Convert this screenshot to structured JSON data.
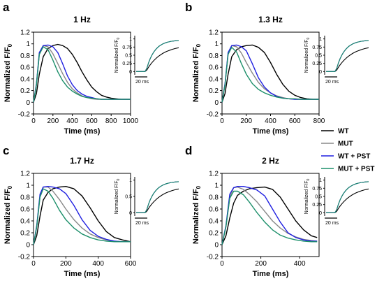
{
  "chart_data": [
    {
      "panel_label": "a",
      "type": "line",
      "title": "1 Hz",
      "xlabel": "Time (ms)",
      "ylabel": "Normalized F/F",
      "ylabel_sub": "0",
      "xlim": [
        0,
        1000
      ],
      "ylim": [
        -0.2,
        1.2
      ],
      "xticks": [
        "0",
        "200",
        "400",
        "600",
        "800",
        "1000"
      ],
      "yticks": [
        "-0.2",
        "0",
        "0.2",
        "0.4",
        "0.6",
        "0.8",
        "1",
        "1.2"
      ],
      "series": [
        {
          "name": "WT",
          "color": "#000000",
          "x": [
            0,
            30,
            60,
            100,
            150,
            200,
            250,
            300,
            350,
            400,
            450,
            500,
            550,
            600,
            650,
            700,
            750,
            800,
            850,
            900,
            950,
            1000
          ],
          "y": [
            0,
            0.15,
            0.48,
            0.78,
            0.92,
            0.97,
            0.99,
            0.97,
            0.92,
            0.82,
            0.68,
            0.52,
            0.38,
            0.26,
            0.18,
            0.12,
            0.09,
            0.07,
            0.06,
            0.05,
            0.05,
            0.05
          ]
        },
        {
          "name": "MUT",
          "color": "#888888",
          "x": [
            0,
            30,
            60,
            100,
            150,
            200,
            250,
            300,
            350,
            400,
            450,
            500,
            550,
            600,
            650,
            700,
            750,
            800,
            850,
            900,
            950,
            1000
          ],
          "y": [
            0,
            0.3,
            0.82,
            0.97,
            0.95,
            0.83,
            0.66,
            0.49,
            0.34,
            0.23,
            0.16,
            0.11,
            0.08,
            0.06,
            0.05,
            0.05,
            0.05,
            0.05,
            0.05,
            0.05,
            0.05,
            0.05
          ]
        },
        {
          "name": "WT + PST",
          "color": "#1f1fe0",
          "x": [
            0,
            30,
            60,
            100,
            150,
            200,
            250,
            300,
            350,
            400,
            450,
            500,
            550,
            600,
            650,
            700,
            750,
            800,
            850,
            900,
            950,
            1000
          ],
          "y": [
            0,
            0.32,
            0.85,
            0.97,
            0.98,
            0.95,
            0.85,
            0.66,
            0.45,
            0.3,
            0.2,
            0.14,
            0.1,
            0.08,
            0.06,
            0.05,
            0.05,
            0.05,
            0.05,
            0.05,
            0.05,
            0.05
          ]
        },
        {
          "name": "MUT + PST",
          "color": "#1c8f6a",
          "x": [
            0,
            30,
            60,
            100,
            150,
            200,
            250,
            300,
            350,
            400,
            450,
            500,
            550,
            600,
            650,
            700,
            750,
            800,
            850,
            900,
            950,
            1000
          ],
          "y": [
            0,
            0.3,
            0.82,
            0.95,
            0.9,
            0.72,
            0.52,
            0.37,
            0.26,
            0.19,
            0.14,
            0.1,
            0.08,
            0.07,
            0.06,
            0.05,
            0.05,
            0.05,
            0.05,
            0.05,
            0.05,
            0.05
          ]
        }
      ],
      "inset": {
        "ylabel": "Normalized F/F",
        "ylabel_sub": "0",
        "yticks": [
          "0",
          "0.25",
          "0.5",
          "0.75",
          "1"
        ],
        "scale_bar_label": "20 ms"
      }
    },
    {
      "panel_label": "b",
      "type": "line",
      "title": "1.3 Hz",
      "xlabel": "Time (ms)",
      "ylabel": "Normalized F/F",
      "ylabel_sub": "0",
      "xlim": [
        0,
        800
      ],
      "ylim": [
        -0.2,
        1.2
      ],
      "xticks": [
        "0",
        "200",
        "400",
        "600",
        "800"
      ],
      "yticks": [
        "-0.2",
        "0",
        "0.2",
        "0.4",
        "0.6",
        "0.8",
        "1",
        "1.2"
      ],
      "series": [
        {
          "name": "WT",
          "color": "#000000",
          "x": [
            0,
            25,
            50,
            80,
            120,
            160,
            200,
            250,
            300,
            350,
            400,
            450,
            500,
            550,
            600,
            650,
            700,
            750,
            800
          ],
          "y": [
            0,
            0.15,
            0.48,
            0.78,
            0.9,
            0.95,
            0.97,
            0.98,
            0.94,
            0.85,
            0.68,
            0.48,
            0.31,
            0.19,
            0.12,
            0.08,
            0.06,
            0.05,
            0.05
          ]
        },
        {
          "name": "MUT",
          "color": "#888888",
          "x": [
            0,
            25,
            50,
            80,
            120,
            160,
            200,
            250,
            300,
            350,
            400,
            450,
            500,
            550,
            600,
            650,
            700,
            750,
            800
          ],
          "y": [
            0,
            0.3,
            0.82,
            0.97,
            0.95,
            0.84,
            0.68,
            0.5,
            0.34,
            0.23,
            0.16,
            0.11,
            0.08,
            0.06,
            0.05,
            0.05,
            0.05,
            0.05,
            0.05
          ]
        },
        {
          "name": "WT + PST",
          "color": "#1f1fe0",
          "x": [
            0,
            25,
            50,
            80,
            120,
            160,
            200,
            250,
            300,
            350,
            400,
            450,
            500,
            550,
            600,
            650,
            700,
            750,
            800
          ],
          "y": [
            0,
            0.32,
            0.85,
            0.97,
            0.98,
            0.95,
            0.88,
            0.66,
            0.42,
            0.26,
            0.16,
            0.1,
            0.07,
            0.06,
            0.05,
            0.05,
            0.05,
            0.05,
            0.05
          ]
        },
        {
          "name": "MUT + PST",
          "color": "#1c8f6a",
          "x": [
            0,
            25,
            50,
            80,
            120,
            160,
            200,
            250,
            300,
            350,
            400,
            450,
            500,
            550,
            600,
            650,
            700,
            750,
            800
          ],
          "y": [
            0,
            0.3,
            0.82,
            0.94,
            0.86,
            0.66,
            0.48,
            0.32,
            0.22,
            0.16,
            0.12,
            0.09,
            0.07,
            0.06,
            0.06,
            0.05,
            0.05,
            0.05,
            0.05
          ]
        }
      ],
      "inset": {
        "ylabel": "Normalized F/F",
        "ylabel_sub": "0",
        "yticks": [
          "0",
          "0.25",
          "0.5",
          "0.75",
          "1"
        ],
        "scale_bar_label": "20 ms"
      }
    },
    {
      "panel_label": "c",
      "type": "line",
      "title": "1.7 Hz",
      "xlabel": "Time (ms)",
      "ylabel": "Normalized F/F",
      "ylabel_sub": "0",
      "xlim": [
        0,
        600
      ],
      "ylim": [
        -0.2,
        1.2
      ],
      "xticks": [
        "0",
        "200",
        "400",
        "600"
      ],
      "yticks": [
        "-0.2",
        "0",
        "0.2",
        "0.4",
        "0.6",
        "0.8",
        "1",
        "1.2"
      ],
      "series": [
        {
          "name": "WT",
          "color": "#000000",
          "x": [
            0,
            20,
            40,
            60,
            90,
            120,
            160,
            200,
            250,
            300,
            350,
            400,
            450,
            500,
            550,
            600
          ],
          "y": [
            0,
            0.15,
            0.48,
            0.75,
            0.88,
            0.94,
            0.97,
            0.98,
            0.94,
            0.82,
            0.62,
            0.4,
            0.22,
            0.12,
            0.08,
            0.05
          ]
        },
        {
          "name": "MUT",
          "color": "#888888",
          "x": [
            0,
            20,
            40,
            60,
            90,
            120,
            160,
            200,
            250,
            300,
            350,
            400,
            450,
            500,
            550,
            600
          ],
          "y": [
            0,
            0.3,
            0.82,
            0.97,
            0.97,
            0.9,
            0.76,
            0.6,
            0.42,
            0.28,
            0.18,
            0.12,
            0.08,
            0.06,
            0.05,
            0.05
          ]
        },
        {
          "name": "WT + PST",
          "color": "#1f1fe0",
          "x": [
            0,
            20,
            40,
            60,
            90,
            120,
            160,
            200,
            250,
            300,
            350,
            400,
            450,
            500,
            550,
            600
          ],
          "y": [
            0,
            0.32,
            0.85,
            0.97,
            0.98,
            0.97,
            0.94,
            0.86,
            0.66,
            0.42,
            0.24,
            0.14,
            0.09,
            0.06,
            0.05,
            0.05
          ]
        },
        {
          "name": "MUT + PST",
          "color": "#1c8f6a",
          "x": [
            0,
            20,
            40,
            60,
            90,
            120,
            160,
            200,
            250,
            300,
            350,
            400,
            450,
            500,
            550,
            600
          ],
          "y": [
            0,
            0.3,
            0.8,
            0.94,
            0.9,
            0.78,
            0.58,
            0.42,
            0.28,
            0.18,
            0.12,
            0.08,
            0.06,
            0.05,
            0.05,
            0.05
          ]
        }
      ],
      "inset": {
        "ylabel": "Normalized F/F",
        "ylabel_sub": "0",
        "yticks": [
          "0",
          "0.5",
          "1"
        ],
        "scale_bar_label": "20 ms"
      }
    },
    {
      "panel_label": "d",
      "type": "line",
      "title": "2 Hz",
      "xlabel": "Time (ms)",
      "ylabel": "Normalized F/F",
      "ylabel_sub": "0",
      "xlim": [
        0,
        500
      ],
      "ylim": [
        -0.2,
        1.2
      ],
      "xticks": [
        "0",
        "200",
        "400"
      ],
      "yticks": [
        "-0.2",
        "0",
        "0.2",
        "0.4",
        "0.6",
        "0.8",
        "1",
        "1.2"
      ],
      "series": [
        {
          "name": "WT",
          "color": "#000000",
          "x": [
            0,
            20,
            40,
            60,
            80,
            110,
            140,
            180,
            220,
            260,
            300,
            340,
            380,
            420,
            460,
            490
          ],
          "y": [
            0,
            0.15,
            0.45,
            0.7,
            0.83,
            0.9,
            0.94,
            0.96,
            0.97,
            0.93,
            0.8,
            0.6,
            0.4,
            0.25,
            0.15,
            0.12
          ]
        },
        {
          "name": "MUT",
          "color": "#888888",
          "x": [
            0,
            20,
            40,
            60,
            80,
            110,
            140,
            180,
            220,
            260,
            300,
            340,
            380,
            420,
            460,
            490
          ],
          "y": [
            0,
            0.3,
            0.8,
            0.96,
            0.97,
            0.93,
            0.85,
            0.72,
            0.56,
            0.4,
            0.28,
            0.19,
            0.13,
            0.09,
            0.07,
            0.06
          ]
        },
        {
          "name": "WT + PST",
          "color": "#1f1fe0",
          "x": [
            0,
            20,
            40,
            60,
            80,
            110,
            140,
            180,
            220,
            260,
            300,
            340,
            380,
            420,
            460,
            490
          ],
          "y": [
            0,
            0.32,
            0.85,
            0.96,
            0.98,
            0.98,
            0.96,
            0.92,
            0.82,
            0.6,
            0.38,
            0.2,
            0.12,
            0.08,
            0.06,
            0.06
          ]
        },
        {
          "name": "MUT + PST",
          "color": "#1c8f6a",
          "x": [
            0,
            20,
            40,
            60,
            80,
            110,
            140,
            180,
            220,
            260,
            300,
            340,
            380,
            420,
            460,
            490
          ],
          "y": [
            0,
            0.3,
            0.78,
            0.9,
            0.9,
            0.84,
            0.72,
            0.54,
            0.38,
            0.25,
            0.16,
            0.11,
            0.08,
            0.06,
            0.05,
            0.05
          ]
        }
      ],
      "inset": {
        "ylabel": "Normalized F/F",
        "ylabel_sub": "0",
        "yticks": [
          "0",
          "0.25",
          "0.5",
          "0.75",
          "1"
        ],
        "scale_bar_label": "20 ms"
      }
    }
  ],
  "legend": {
    "entries": [
      {
        "name": "WT",
        "color": "#000000"
      },
      {
        "name": "MUT",
        "color": "#888888"
      },
      {
        "name": "WT + PST",
        "color": "#1f1fe0"
      },
      {
        "name": "MUT + PST",
        "color": "#1c8f6a"
      }
    ]
  }
}
